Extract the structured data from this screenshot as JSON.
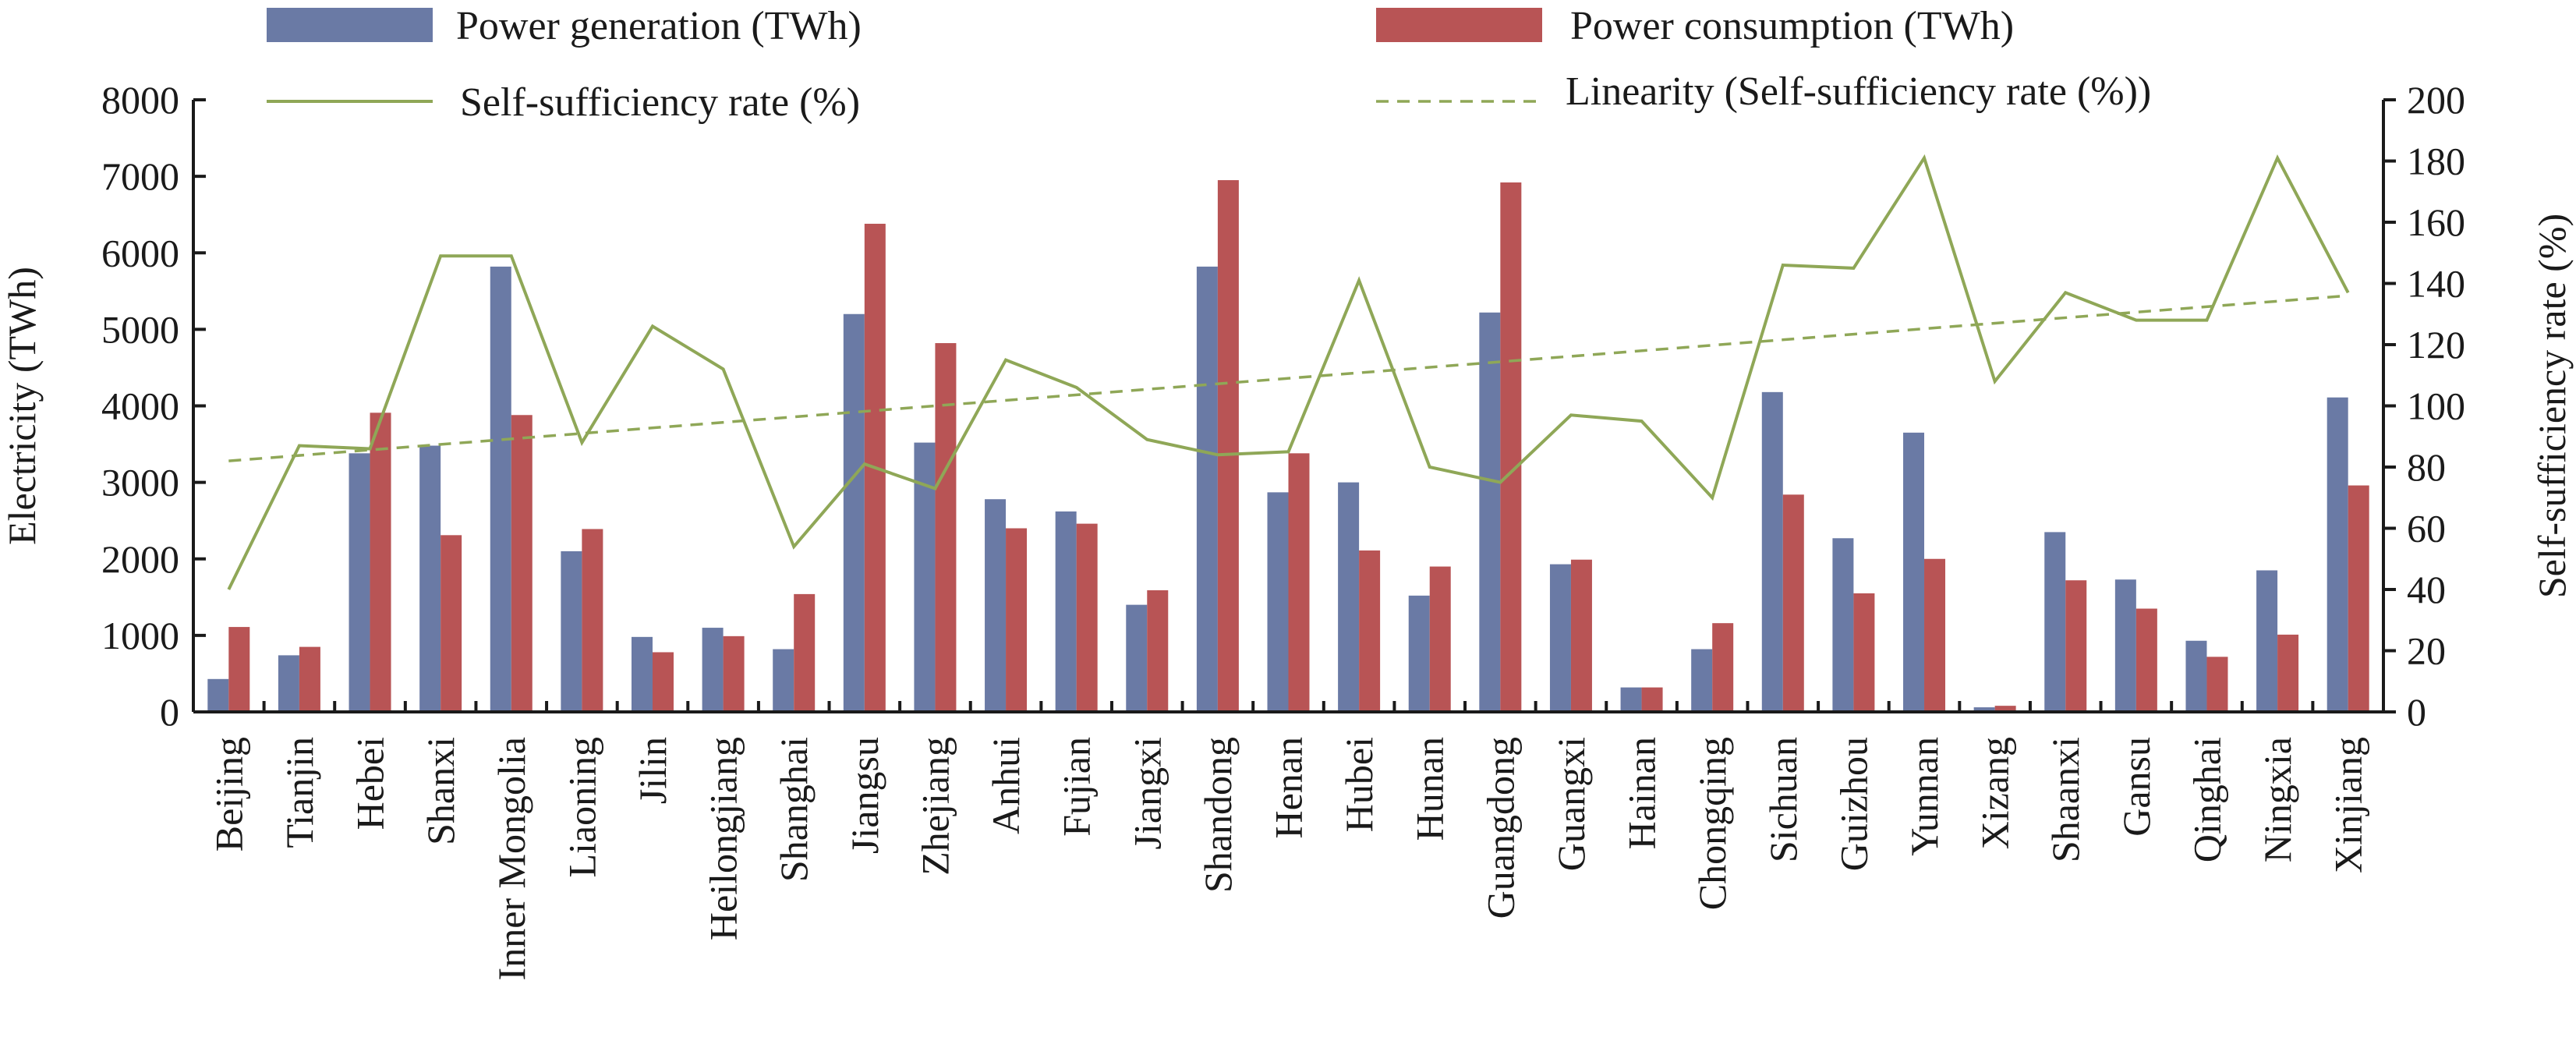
{
  "chart_data": {
    "type": "bar",
    "title": "",
    "categories": [
      "Beijing",
      "Tianjin",
      "Hebei",
      "Shanxi",
      "Inner Mongolia",
      "Liaoning",
      "Jilin",
      "Heilongjiang",
      "Shanghai",
      "Jiangsu",
      "Zhejiang",
      "Anhui",
      "Fujian",
      "Jiangxi",
      "Shandong",
      "Henan",
      "Hubei",
      "Hunan",
      "Guangdong",
      "Guangxi",
      "Hainan",
      "Chongqing",
      "Sichuan",
      "Guizhou",
      "Yunnan",
      "Xizang",
      "Shaanxi",
      "Gansu",
      "Qinghai",
      "Ningxia",
      "Xinjiang"
    ],
    "series": [
      {
        "name": "Power generation (TWh)",
        "type": "bar",
        "axis": "left",
        "color": "#6a7aa5",
        "values": [
          430,
          740,
          3380,
          3480,
          5820,
          2100,
          980,
          1100,
          820,
          5200,
          3520,
          2780,
          2620,
          1400,
          5820,
          2870,
          3000,
          1520,
          5220,
          1930,
          320,
          820,
          4180,
          2270,
          3650,
          60,
          2350,
          1730,
          930,
          1850,
          4110
        ]
      },
      {
        "name": "Power consumption (TWh)",
        "type": "bar",
        "axis": "left",
        "color": "#b85455",
        "values": [
          1110,
          850,
          3910,
          2310,
          3880,
          2390,
          780,
          990,
          1540,
          6380,
          4820,
          2400,
          2460,
          1590,
          6950,
          3380,
          2110,
          1900,
          6920,
          1990,
          320,
          1160,
          2840,
          1550,
          2000,
          80,
          1720,
          1350,
          720,
          1010,
          2960
        ]
      },
      {
        "name": "Self-sufficiency rate (%)",
        "type": "line",
        "axis": "right",
        "color": "#8fa757",
        "values": [
          40,
          87,
          86,
          149,
          149,
          88,
          126,
          112,
          54,
          81,
          73,
          115,
          106,
          89,
          84,
          85,
          141,
          80,
          75,
          97,
          95,
          70,
          146,
          145,
          181,
          108,
          137,
          128,
          128,
          181,
          137
        ]
      },
      {
        "name": "Linearity (Self-sufficiency rate (%))",
        "type": "trendline",
        "axis": "right",
        "color": "#8fa757",
        "start": 82,
        "end": 136
      }
    ],
    "ylabel": "Electricity (TWh)",
    "y2label": "Self-sufficiency rate (%)",
    "ylim": [
      0,
      8000
    ],
    "y2lim": [
      0,
      200
    ],
    "yticks": [
      "0",
      "1000",
      "2000",
      "3000",
      "4000",
      "5000",
      "6000",
      "7000",
      "8000"
    ],
    "y2ticks": [
      "0",
      "20",
      "40",
      "60",
      "80",
      "100",
      "120",
      "140",
      "160",
      "180",
      "200"
    ],
    "grid": false,
    "legend_position": "top"
  }
}
